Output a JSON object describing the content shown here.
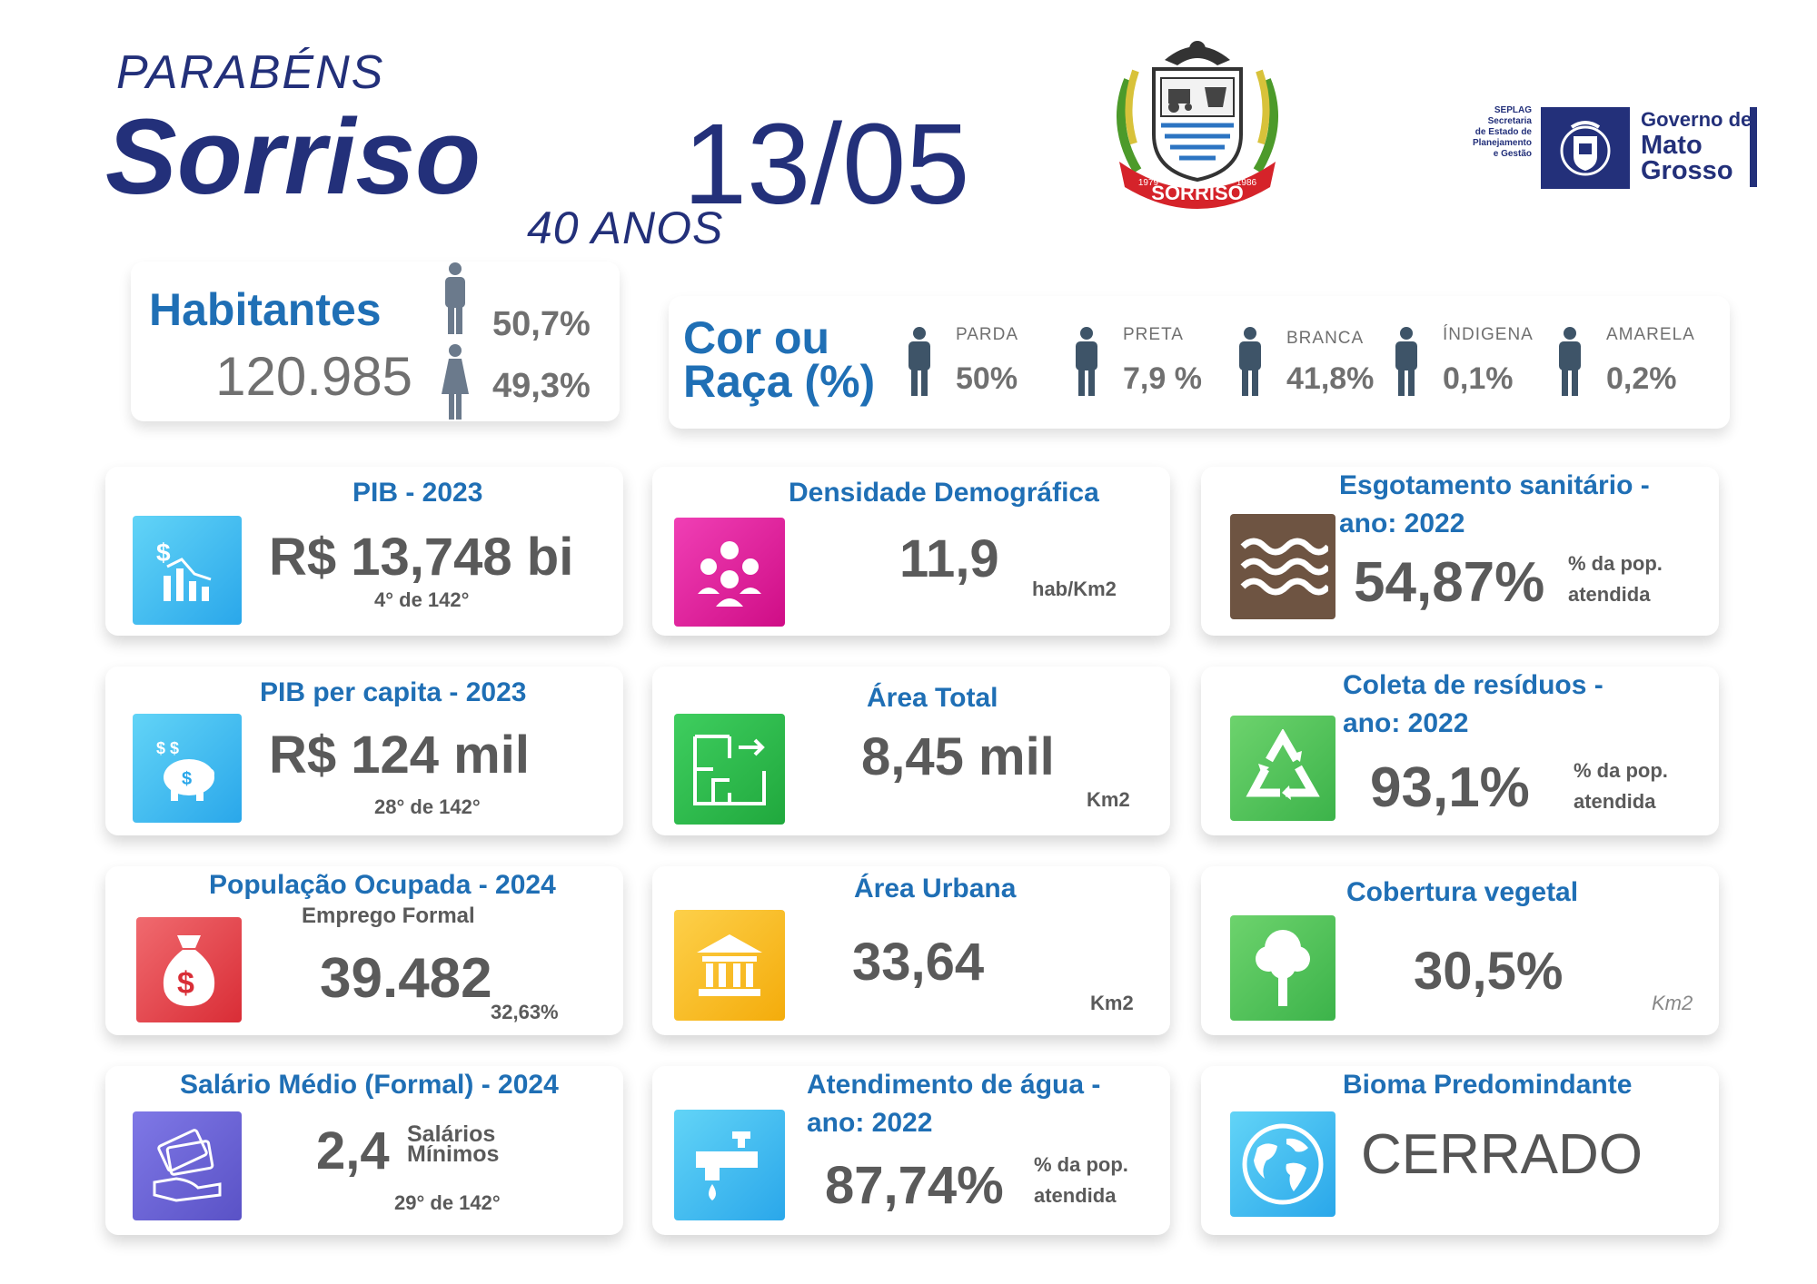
{
  "header": {
    "greeting": "PARABÉNS",
    "city": "Sorriso",
    "date": "13/05",
    "anniversary": "40 ANOS",
    "crest_label": "SORRISO",
    "crest_year_left": "1979",
    "crest_year_right": "1986",
    "seplag_lines": [
      "SEPLAG",
      "Secretaria",
      "de Estado de",
      "Planejamento",
      "e Gestão"
    ],
    "gov_line1": "Governo de",
    "gov_line2": "Mato",
    "gov_line3": "Grosso"
  },
  "population": {
    "title": "Habitantes",
    "total": "120.985",
    "male_pct": "50,7%",
    "female_pct": "49,3%"
  },
  "race": {
    "title_line1": "Cor ou",
    "title_line2": "Raça (%)",
    "items": [
      {
        "label": "PARDA",
        "value": "50%"
      },
      {
        "label": "PRETA",
        "value": "7,9 %"
      },
      {
        "label": "BRANCA",
        "value": "41,8%"
      },
      {
        "label": "ÍNDIGENA",
        "value": "0,1%"
      },
      {
        "label": "AMARELA",
        "value": "0,2%"
      }
    ]
  },
  "cards": {
    "pib": {
      "title": "PIB - 2023",
      "value": "R$ 13,748 bi",
      "rank": "4° de 142°"
    },
    "pib_pc": {
      "title": "PIB per capita - 2023",
      "value": "R$ 124 mil",
      "rank": "28° de 142°"
    },
    "pop_ocup": {
      "title": "População Ocupada - 2024",
      "subtitle": "Emprego Formal",
      "value": "39.482",
      "pct": "32,63%"
    },
    "salario": {
      "title": "Salário Médio (Formal) - 2024",
      "value": "2,4",
      "unit_line1": "Salários",
      "unit_line2": "Mínimos",
      "rank": "29° de 142°"
    },
    "densidade": {
      "title": "Densidade Demográfica",
      "value": "11,9",
      "unit": "hab/Km2"
    },
    "area_total": {
      "title": "Área Total",
      "value": "8,45 mil",
      "unit": "Km2"
    },
    "area_urbana": {
      "title": "Área Urbana",
      "value": "33,64",
      "unit": "Km2"
    },
    "agua": {
      "title_line1": "Atendimento de água -",
      "title_line2": "ano: 2022",
      "value": "87,74%",
      "unit_line1": "% da pop.",
      "unit_line2": "atendida"
    },
    "esgoto": {
      "title_line1": "Esgotamento sanitário -",
      "title_line2": "ano: 2022",
      "value": "54,87%",
      "unit_line1": "% da pop.",
      "unit_line2": "atendida"
    },
    "residuos": {
      "title_line1": "Coleta de resíduos -",
      "title_line2": "ano: 2022",
      "value": "93,1%",
      "unit_line1": "% da pop.",
      "unit_line2": "atendida"
    },
    "vegetal": {
      "title": "Cobertura vegetal",
      "value": "30,5%",
      "unit": "Km2"
    },
    "bioma": {
      "title": "Bioma Predomindante",
      "value": "CERRADO"
    }
  },
  "colors": {
    "navy": "#23307a",
    "title_blue": "#1f6fb5",
    "text_gray": "#5a5a5a",
    "icon_cyan": "#3fb8ef",
    "icon_magenta": "#e0199a",
    "icon_brown": "#6e5442",
    "icon_green": "#2fb85b",
    "icon_red": "#e03a41",
    "icon_yellow": "#f6b40e",
    "icon_purple": "#6a63d8",
    "icon_lightgreen": "#5cc46a"
  }
}
